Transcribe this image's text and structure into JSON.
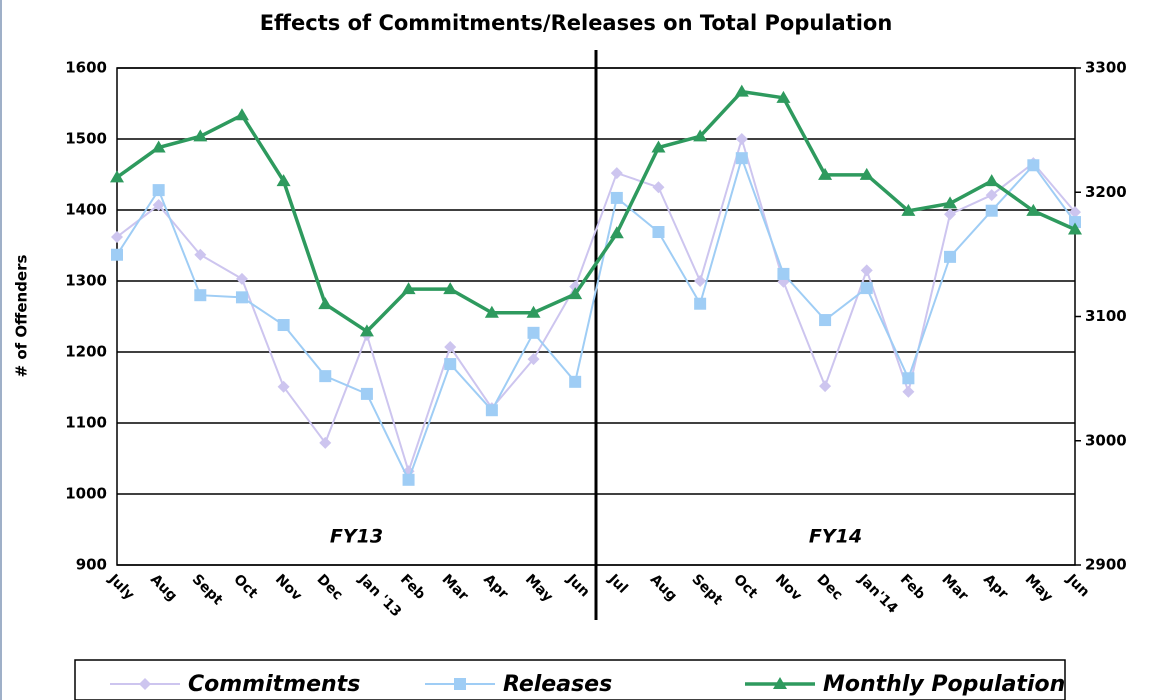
{
  "chart_data": {
    "type": "line",
    "title": "Effects of Commitments/Releases on Total Population",
    "y_label": "# of Offenders",
    "categories": [
      "July",
      "Aug",
      "Sept",
      "Oct",
      "Nov",
      "Dec",
      "Jan '13",
      "Feb",
      "Mar",
      "Apr",
      "May",
      "Jun",
      "Jul",
      "Aug",
      "Sept",
      "Oct",
      "Nov",
      "Dec",
      "Jan'14",
      "Feb",
      "Mar",
      "Apr",
      "May",
      "Jun"
    ],
    "annotations": [
      "FY13",
      "FY14"
    ],
    "series": [
      {
        "name": "Commitments",
        "color": "#cdc5ef",
        "marker": "diamond",
        "values": [
          1362,
          1407,
          1337,
          1303,
          1151,
          1072,
          1224,
          1032,
          1207,
          1121,
          1190,
          1292,
          1452,
          1432,
          1300,
          1500,
          1299,
          1152,
          1315,
          1144,
          1394,
          1421,
          1466,
          1397
        ]
      },
      {
        "name": "Releases",
        "color": "#9fcdf5",
        "marker": "square",
        "values": [
          1337,
          1428,
          1280,
          1277,
          1238,
          1166,
          1141,
          1020,
          1183,
          1118,
          1227,
          1158,
          1417,
          1369,
          1268,
          1473,
          1310,
          1245,
          1290,
          1163,
          1334,
          1399,
          1463,
          1383
        ]
      },
      {
        "name": "Monthly Population",
        "color": "#2e9a5e",
        "marker": "triangle",
        "axis": "y2",
        "values": [
          3212,
          3236,
          3245,
          3262,
          3209,
          3110,
          3088,
          3122,
          3122,
          3103,
          3103,
          3118,
          3167,
          3236,
          3245,
          3281,
          3276,
          3214,
          3214,
          3185,
          3191,
          3209,
          3185,
          3170
        ]
      }
    ],
    "ylim": [
      900,
      1600
    ],
    "yticks": [
      900,
      1000,
      1100,
      1200,
      1300,
      1400,
      1500,
      1600
    ],
    "y2lim": [
      2900,
      3300
    ],
    "y2ticks": [
      2900,
      3000,
      3100,
      3200,
      3300
    ],
    "grid": true
  }
}
